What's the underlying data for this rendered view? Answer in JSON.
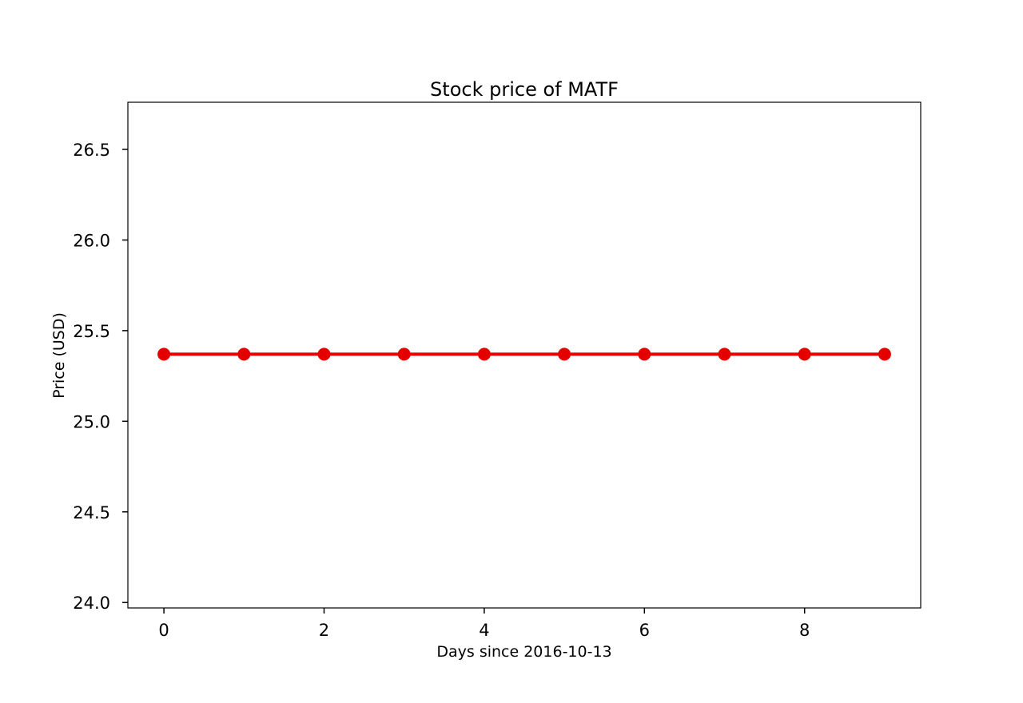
{
  "chart_data": {
    "type": "line",
    "title": "Stock price of MATF",
    "xlabel": "Days since 2016-10-13",
    "ylabel": "Price (USD)",
    "x": [
      0,
      1,
      2,
      3,
      4,
      5,
      6,
      7,
      8,
      9
    ],
    "series": [
      {
        "values": [
          25.37,
          25.37,
          25.37,
          25.37,
          25.37,
          25.37,
          25.37,
          25.37,
          25.37,
          25.37
        ],
        "color": "#e50000",
        "marker": "circle"
      }
    ],
    "xlim": [
      -0.45,
      9.45
    ],
    "ylim": [
      23.97,
      26.76
    ],
    "xticks": [
      0,
      2,
      4,
      6,
      8
    ],
    "xtick_labels": [
      "0",
      "2",
      "4",
      "6",
      "8"
    ],
    "yticks": [
      24.0,
      24.5,
      25.0,
      25.5,
      26.0,
      26.5
    ],
    "ytick_labels": [
      "24.0",
      "24.5",
      "25.0",
      "25.5",
      "26.0",
      "26.5"
    ],
    "grid": false,
    "legend": "none"
  }
}
